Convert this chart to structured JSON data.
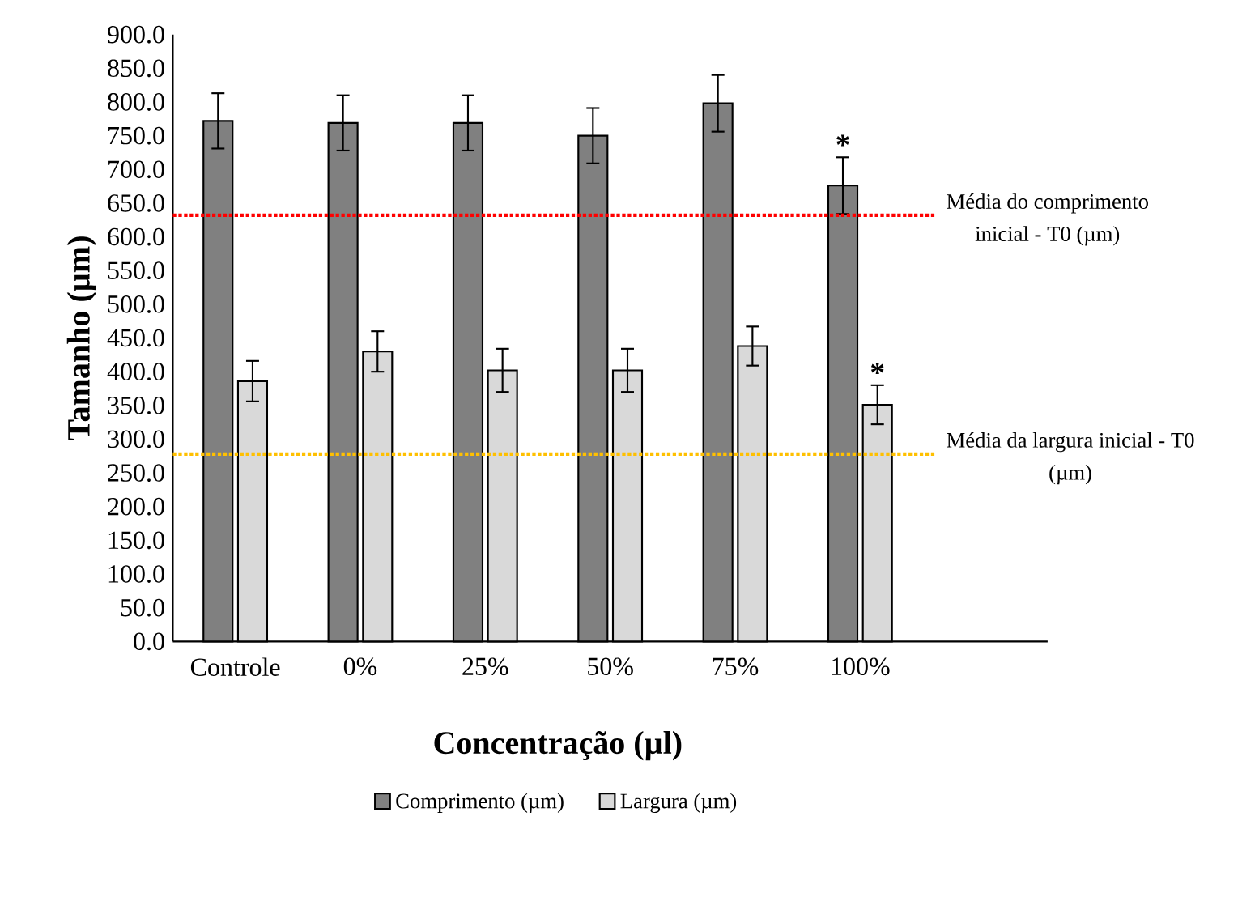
{
  "chart_data": {
    "type": "bar",
    "categories": [
      "Controle",
      "0%",
      "25%",
      "50%",
      "75%",
      "100%"
    ],
    "series": [
      {
        "name": "Comprimento (µm)",
        "color": "#808080",
        "values": [
          772,
          769,
          769,
          750,
          798,
          676
        ],
        "errors": [
          41,
          41,
          41,
          41,
          42,
          42
        ]
      },
      {
        "name": "Largura (µm)",
        "color": "#d9d9d9",
        "values": [
          386,
          430,
          402,
          402,
          438,
          351
        ],
        "errors": [
          30,
          30,
          32,
          32,
          29,
          29
        ]
      }
    ],
    "xlabel": "Concentração (µl)",
    "ylabel": "Tamanho (µm)",
    "ylim": [
      0,
      900
    ],
    "yticks": [
      {
        "value": 0,
        "label": "0.0"
      },
      {
        "value": 50,
        "label": "50.0"
      },
      {
        "value": 100,
        "label": "100.0"
      },
      {
        "value": 150,
        "label": "150.0"
      },
      {
        "value": 200,
        "label": "200.0"
      },
      {
        "value": 250,
        "label": "250.0"
      },
      {
        "value": 300,
        "label": "300.0"
      },
      {
        "value": 350,
        "label": "350.0"
      },
      {
        "value": 400,
        "label": "400.0"
      },
      {
        "value": 450,
        "label": "450.0"
      },
      {
        "value": 500,
        "label": "500.0"
      },
      {
        "value": 550,
        "label": "550.0"
      },
      {
        "value": 600,
        "label": "600.0"
      },
      {
        "value": 650,
        "label": "650.0"
      },
      {
        "value": 700,
        "label": "700.0"
      },
      {
        "value": 750,
        "label": "750.0"
      },
      {
        "value": 800,
        "label": "800.0"
      },
      {
        "value": 850,
        "label": "850.0"
      },
      {
        "value": 900,
        "label": "900.0"
      }
    ],
    "ref_lines": [
      {
        "axis": "y",
        "value": 632,
        "label": "Média do comprimento inicial - T0 (µm)",
        "color": "#ff0000",
        "line_style": "dotted"
      },
      {
        "axis": "y",
        "value": 278,
        "label": "Média da largura inicial - T0 (µm)",
        "color": "#ffc000",
        "line_style": "dotted"
      }
    ],
    "annotations": [
      {
        "text": "*",
        "x": "100%",
        "y": 676
      },
      {
        "text": "*",
        "x": "100%",
        "y": 351
      }
    ],
    "legend": "bottom"
  }
}
